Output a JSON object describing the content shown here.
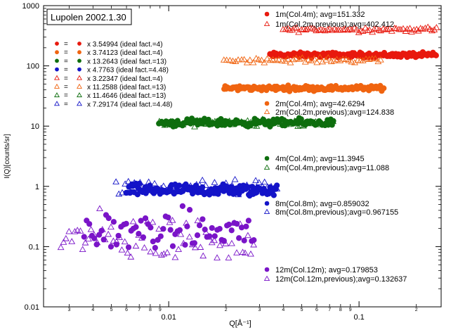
{
  "chart_data": {
    "type": "scatter",
    "title": "Lupolen 2002.1.30",
    "xlabel": "Q[Å⁻¹]",
    "ylabel": "I(Q)[counts/sr]",
    "xscale": "log",
    "yscale": "log",
    "xlim": [
      0.0022,
      0.27
    ],
    "ylim": [
      0.01,
      1000
    ],
    "grid": false,
    "legend_position": "top-left",
    "x_ticks": [
      {
        "v": 0.003,
        "label": "3"
      },
      {
        "v": 0.004,
        "label": "4"
      },
      {
        "v": 0.005,
        "label": "5"
      },
      {
        "v": 0.006,
        "label": "6"
      },
      {
        "v": 0.007,
        "label": "7"
      },
      {
        "v": 0.008,
        "label": "8"
      },
      {
        "v": 0.009,
        "label": "9"
      },
      {
        "v": 0.01,
        "label": "0.01"
      },
      {
        "v": 0.02,
        "label": "2"
      },
      {
        "v": 0.03,
        "label": "3"
      },
      {
        "v": 0.04,
        "label": "4"
      },
      {
        "v": 0.05,
        "label": "5"
      },
      {
        "v": 0.06,
        "label": "6"
      },
      {
        "v": 0.07,
        "label": "7"
      },
      {
        "v": 0.08,
        "label": "8"
      },
      {
        "v": 0.09,
        "label": "9"
      },
      {
        "v": 0.1,
        "label": "0.1"
      },
      {
        "v": 0.2,
        "label": "2"
      }
    ],
    "y_ticks": [
      {
        "v": 0.01,
        "label": "0.01"
      },
      {
        "v": 0.1,
        "label": "0.1"
      },
      {
        "v": 1,
        "label": "1"
      },
      {
        "v": 10,
        "label": "10"
      },
      {
        "v": 100,
        "label": "100"
      },
      {
        "v": 1000,
        "label": "1000"
      }
    ],
    "scale_factors": [
      {
        "color": "#e8190e",
        "marker": "circle",
        "text": "x 3.54994 (ideal fact.=4)"
      },
      {
        "color": "#f06410",
        "marker": "circle",
        "text": "x 3.74123 (ideal fact.=4)"
      },
      {
        "color": "#0e6e0e",
        "marker": "circle",
        "text": "x 13.2643 (ideal fact.=13)"
      },
      {
        "color": "#1414c8",
        "marker": "circle",
        "text": "x 4.7763 (ideal fact.=4.48)"
      },
      {
        "color": "#e8190e",
        "marker": "triangle",
        "text": "x 3.22347 (ideal fact.=4)"
      },
      {
        "color": "#f06410",
        "marker": "triangle",
        "text": "x 11.2588 (ideal fact.=13)"
      },
      {
        "color": "#0e6e0e",
        "marker": "triangle",
        "text": "x 11.4646 (ideal fact.=13)"
      },
      {
        "color": "#1414c8",
        "marker": "triangle",
        "text": "x 7.29174 (ideal fact.=4.48)"
      }
    ],
    "scale_factor_eq": "=",
    "series": [
      {
        "name": "1m(Col.4m); avg=151.332",
        "color": "#e8190e",
        "marker": "circle",
        "x_range": [
          0.034,
          0.255
        ],
        "level": 151.332,
        "noise": 0.02,
        "count": 160
      },
      {
        "name": "1m(Col.2m,previous);avg=402.412",
        "color": "#e8190e",
        "marker": "triangle",
        "x_range": [
          0.04,
          0.255
        ],
        "level": 402.412,
        "noise": 0.02,
        "count": 70
      },
      {
        "name": "2m(Col.4m); avg=42.6294",
        "color": "#f06410",
        "marker": "circle",
        "x_range": [
          0.0195,
          0.135
        ],
        "level": 42.6294,
        "noise": 0.02,
        "count": 140
      },
      {
        "name": "2m(Col.2m,previous);avg=124.838",
        "color": "#f06410",
        "marker": "triangle",
        "x_range": [
          0.0195,
          0.13
        ],
        "level": 124.838,
        "noise": 0.02,
        "count": 55
      },
      {
        "name": "4m(Col.4m); avg=11.3945",
        "color": "#0e6e0e",
        "marker": "circle",
        "x_range": [
          0.0089,
          0.073
        ],
        "level": 11.3945,
        "noise": 0.03,
        "count": 150
      },
      {
        "name": "4m(Col.4m,previous);avg=11.088",
        "color": "#0e6e0e",
        "marker": "triangle",
        "x_range": [
          0.0089,
          0.073
        ],
        "level": 11.088,
        "noise": 0.03,
        "count": 60
      },
      {
        "name": "8m(Col.8m); avg=0.859032",
        "color": "#1414c8",
        "marker": "circle",
        "x_range": [
          0.006,
          0.037
        ],
        "level": 0.859032,
        "noise": 0.05,
        "count": 140
      },
      {
        "name": "8m(Col.8m,previous);avg=0.967155",
        "color": "#1414c8",
        "marker": "triangle",
        "x_range": [
          0.0053,
          0.037
        ],
        "level": 0.967155,
        "noise": 0.06,
        "count": 55
      },
      {
        "name": "12m(Col.12m); avg=0.179853",
        "color": "#7a14c8",
        "marker": "circle",
        "x_range": [
          0.0036,
          0.028
        ],
        "level": 0.179853,
        "noise": 0.16,
        "count": 70
      },
      {
        "name": "12m(Col.12m,previous);avg=0.132637",
        "color": "#7a14c8",
        "marker": "triangle",
        "x_range": [
          0.0027,
          0.028
        ],
        "level": 0.132637,
        "noise": 0.2,
        "count": 70
      }
    ],
    "series_legend_order": [
      0,
      1,
      2,
      3,
      4,
      5,
      6,
      7,
      8,
      9
    ]
  }
}
